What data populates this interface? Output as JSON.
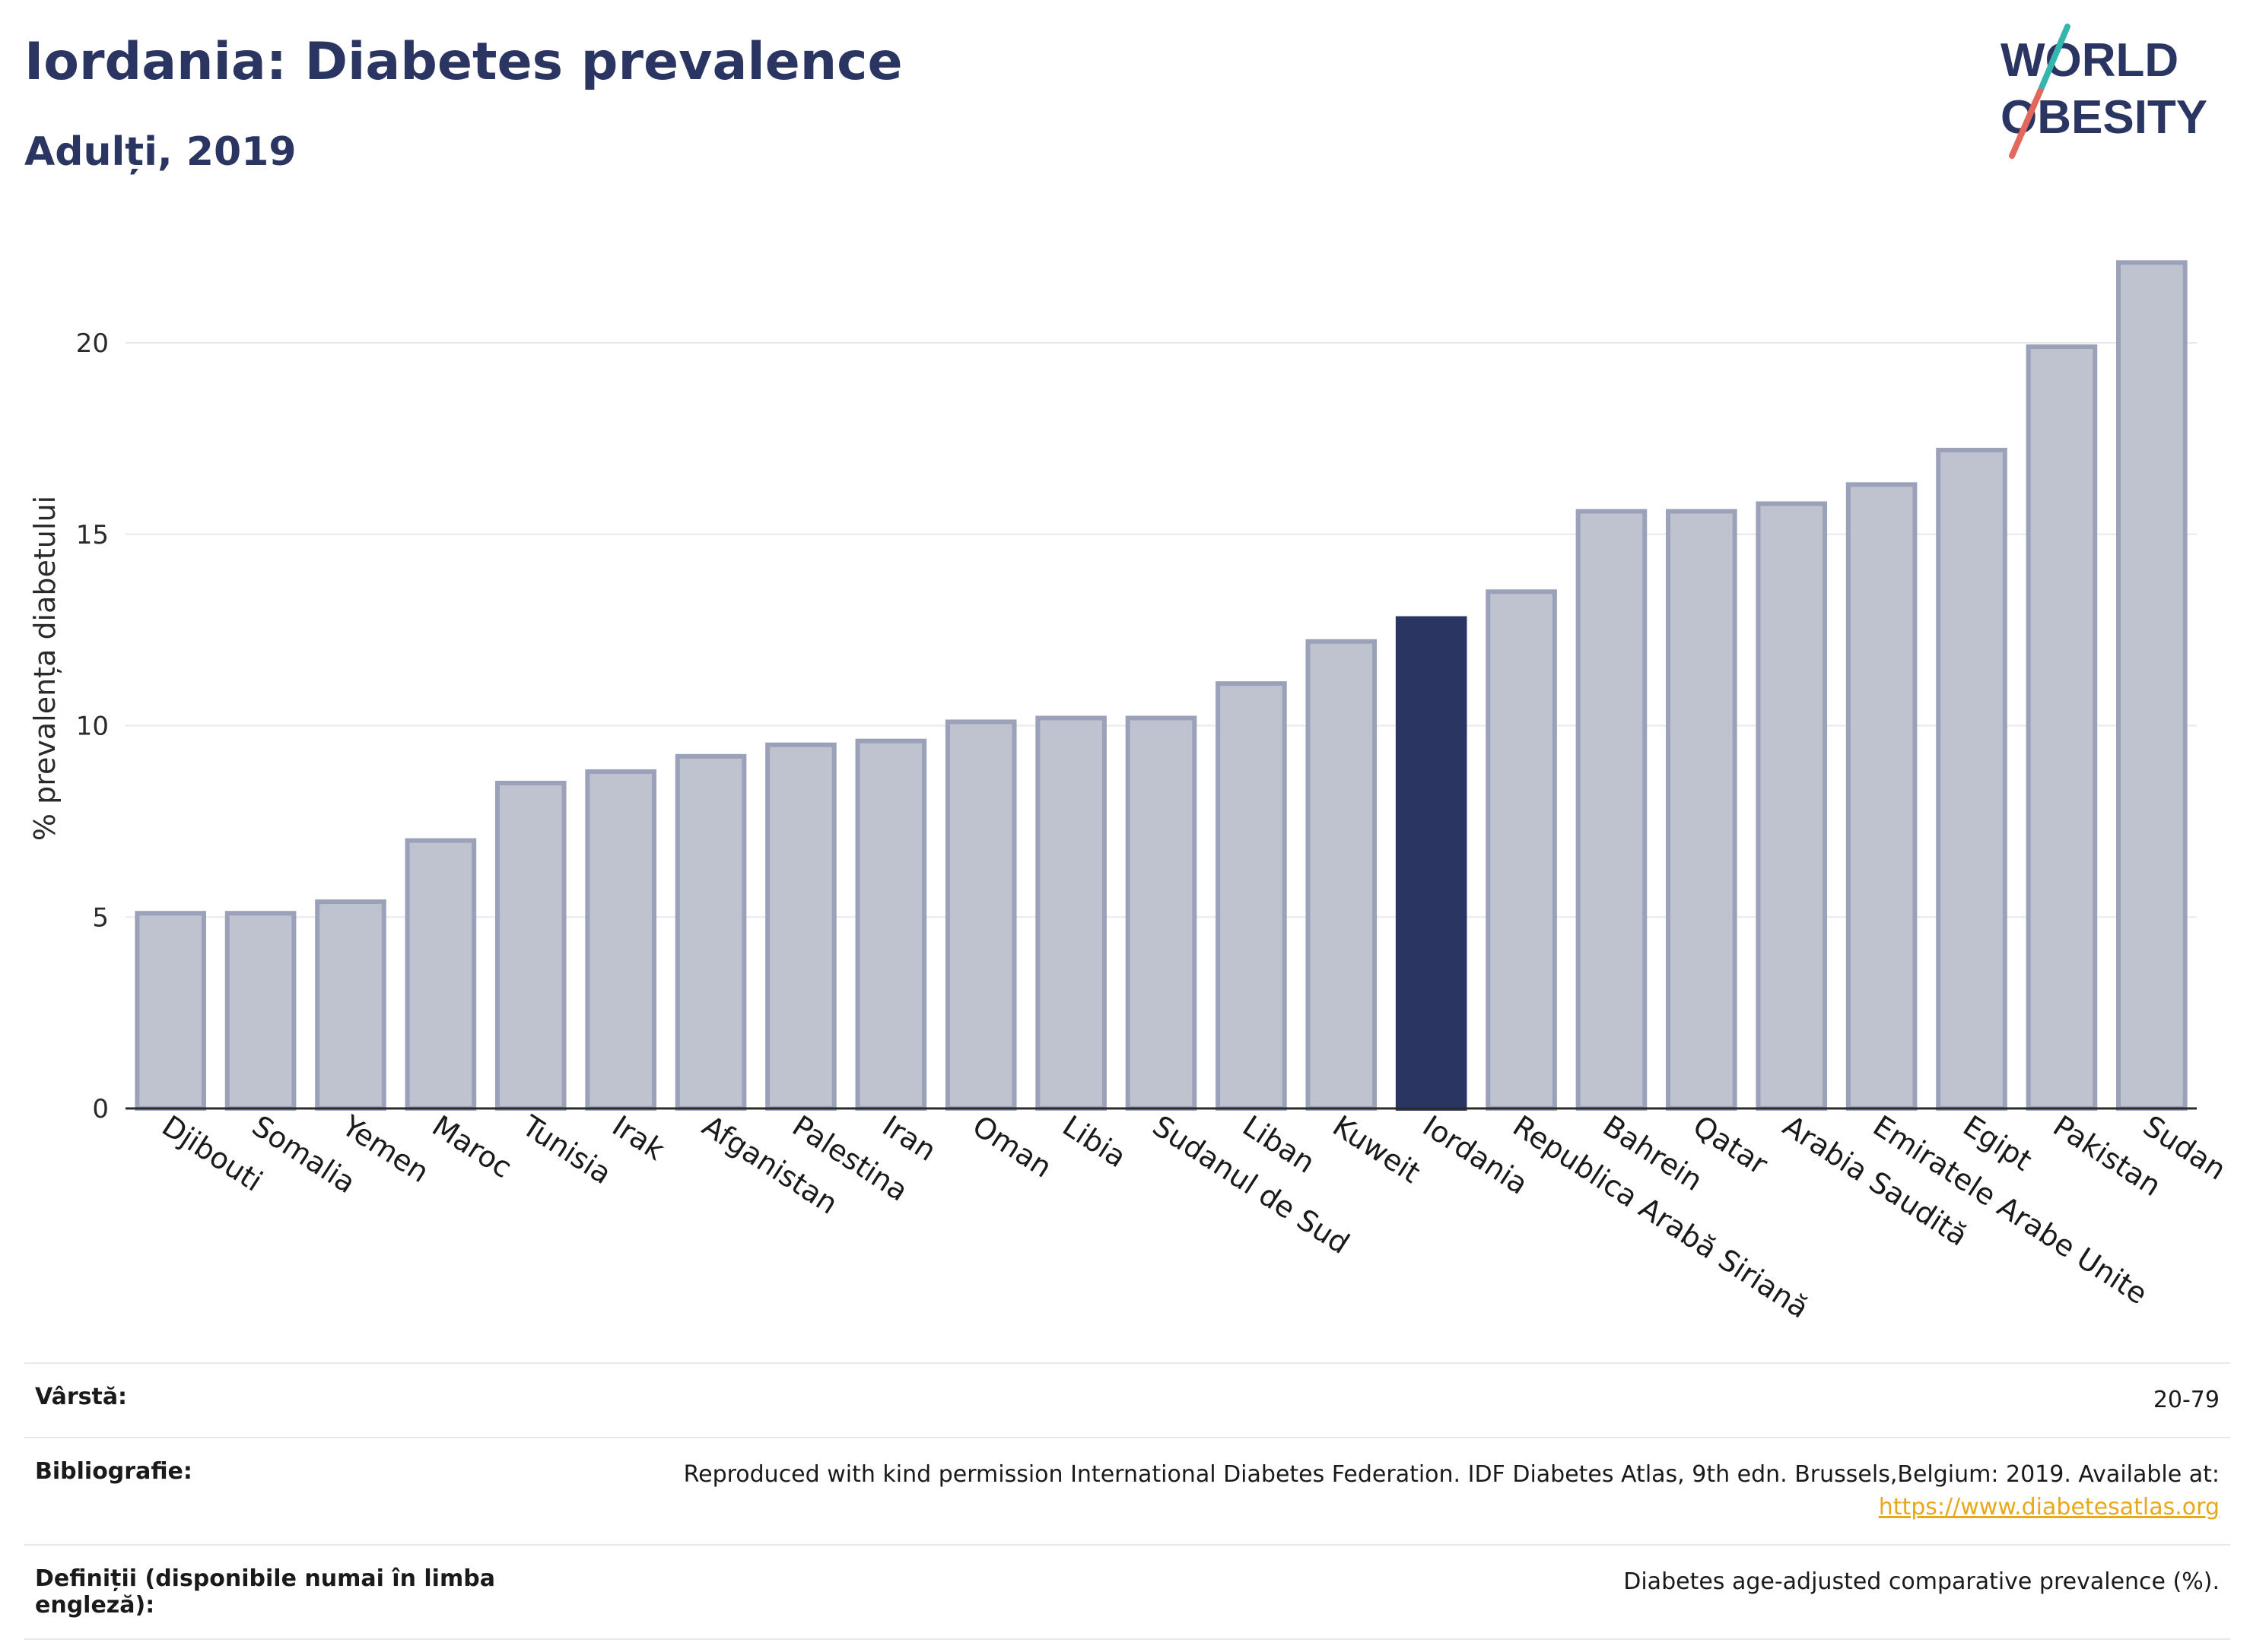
{
  "header": {
    "title": "Iordania: Diabetes prevalence",
    "subtitle": "Adulți, 2019",
    "logo_line1": "WORLD",
    "logo_line2": "OBESITY"
  },
  "chart_data": {
    "type": "bar",
    "ylabel": "% prevalența diabetului",
    "ylim": [
      0,
      23
    ],
    "yticks": [
      0,
      5,
      10,
      15,
      20
    ],
    "grid": true,
    "highlight": "Iordania",
    "colors": {
      "bar": "#bfc3d0",
      "bar_edge": "#9aa1b8",
      "highlight": "#2b3562",
      "grid": "#e8e9ee",
      "axis": "#2a2a2a"
    },
    "categories": [
      "Djibouti",
      "Somalia",
      "Yemen",
      "Maroc",
      "Tunisia",
      "Irak",
      "Afganistan",
      "Palestina",
      "Iran",
      "Oman",
      "Libia",
      "Sudanul de Sud",
      "Liban",
      "Kuweit",
      "Iordania",
      "Republica Arabă Siriană",
      "Bahrein",
      "Qatar",
      "Arabia Saudită",
      "Emiratele Arabe Unite",
      "Egipt",
      "Pakistan",
      "Sudan"
    ],
    "values": [
      5.1,
      5.1,
      5.4,
      7.0,
      8.5,
      8.8,
      9.2,
      9.5,
      9.6,
      10.1,
      10.2,
      10.2,
      11.1,
      12.2,
      12.8,
      13.5,
      15.6,
      15.6,
      15.8,
      16.3,
      17.2,
      19.9,
      22.1
    ]
  },
  "meta": {
    "age_label": "Vârstă:",
    "age_value": "20-79",
    "bib_label": "Bibliografie:",
    "bib_value": "Reproduced with kind permission International Diabetes Federation. IDF Diabetes Atlas, 9th edn. Brussels,Belgium: 2019. Available at:",
    "bib_link": "https://www.diabetesatlas.org",
    "def_label": "Definiții (disponibile numai în limba engleză):",
    "def_value": "Diabetes age-adjusted comparative prevalence (%)."
  }
}
